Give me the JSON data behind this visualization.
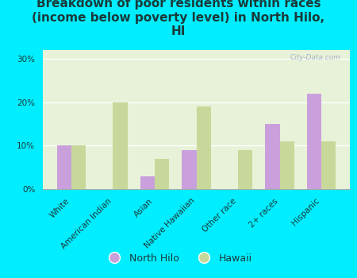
{
  "title": "Breakdown of poor residents within races\n(income below poverty level) in North Hilo,\nHI",
  "categories": [
    "White",
    "American Indian",
    "Asian",
    "Native Hawaiian",
    "Other race",
    "2+ races",
    "Hispanic"
  ],
  "north_hilo": [
    10,
    0,
    3,
    9,
    0,
    15,
    22
  ],
  "hawaii": [
    10,
    20,
    7,
    19,
    9,
    11,
    11
  ],
  "north_hilo_color": "#c9a0dc",
  "hawaii_color": "#c8d89a",
  "background_outer": "#00eeff",
  "background_plot": "#e8f2d8",
  "ylim": [
    0,
    32
  ],
  "yticks": [
    0,
    10,
    20,
    30
  ],
  "ytick_labels": [
    "0%",
    "10%",
    "20%",
    "30%"
  ],
  "watermark": "City-Data.com",
  "bar_width": 0.35,
  "title_fontsize": 11,
  "tick_fontsize": 7.5,
  "legend_fontsize": 9,
  "title_color": "#1a3a3a"
}
